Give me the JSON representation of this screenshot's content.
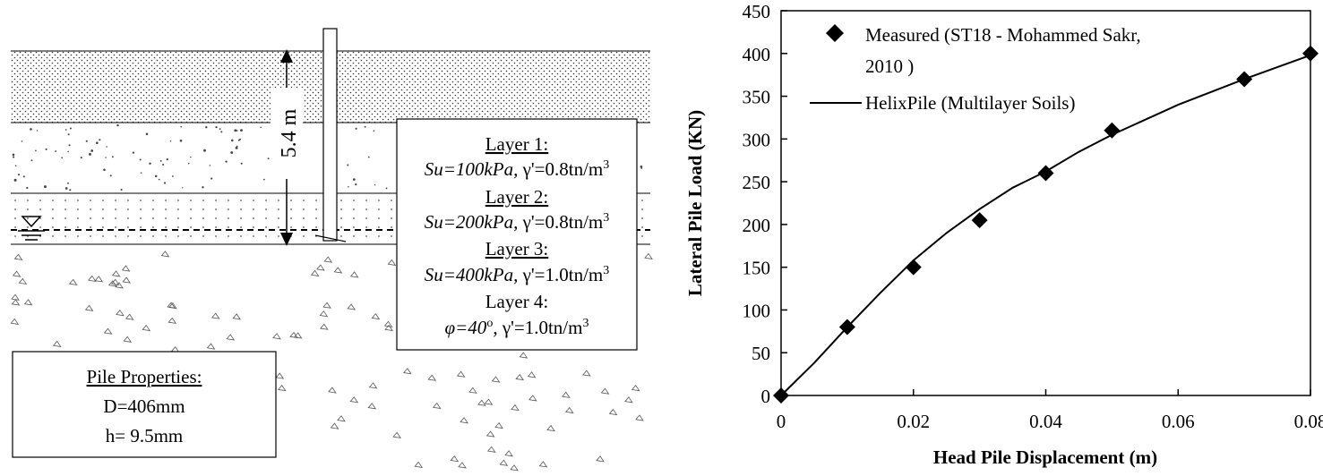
{
  "soil_profile": {
    "depth_label": "5.4 m",
    "layers": [
      {
        "title": "Layer 1:",
        "line_a": "Su=100kPa,",
        "line_b": "γ'=0.8tn/m",
        "sup": "3"
      },
      {
        "title": "Layer 2:",
        "line_a": "Su=200kPa,",
        "line_b": "γ'=0.8tn/m",
        "sup": "3"
      },
      {
        "title": "Layer 3:",
        "line_a": "Su=400kPa,",
        "line_b": "γ'=1.0tn/m",
        "sup": "3"
      },
      {
        "title": "Layer 4:",
        "line_a": "φ=40",
        "deg": "o",
        "line_b": ", γ'=1.0tn/m",
        "sup": "3"
      }
    ],
    "pile": {
      "title": "Pile Properties:",
      "diameter": "D=406mm",
      "thickness": "h= 9.5mm"
    }
  },
  "chart_data": {
    "type": "scatter",
    "xlabel": "Head Pile Displacement (m)",
    "ylabel": "Lateral Pile Load (KN)",
    "xlim": [
      0,
      0.08
    ],
    "ylim": [
      0,
      450
    ],
    "xticks": [
      "0",
      "0.02",
      "0.04",
      "0.06",
      "0.08"
    ],
    "yticks": [
      "0",
      "50",
      "100",
      "150",
      "200",
      "250",
      "300",
      "350",
      "400",
      "450"
    ],
    "grid": false,
    "legend_position": "top-left",
    "series": [
      {
        "name": "Measured (ST18 - Mohammed Sakr, 2010 )",
        "legend_line1": "Measured (ST18 - Mohammed Sakr,",
        "legend_line2": "2010 )",
        "marker": "diamond",
        "x": [
          0,
          0.01,
          0.02,
          0.03,
          0.04,
          0.05,
          0.07,
          0.08
        ],
        "y": [
          0,
          80,
          150,
          205,
          260,
          310,
          370,
          400
        ]
      },
      {
        "name": "HelixPile (Multilayer Soils)",
        "marker": "line",
        "x": [
          0,
          0.005,
          0.01,
          0.015,
          0.02,
          0.025,
          0.03,
          0.035,
          0.04,
          0.045,
          0.05,
          0.06,
          0.07,
          0.08
        ],
        "y": [
          0,
          38,
          80,
          120,
          158,
          190,
          218,
          243,
          262,
          285,
          305,
          340,
          370,
          398
        ]
      }
    ]
  }
}
